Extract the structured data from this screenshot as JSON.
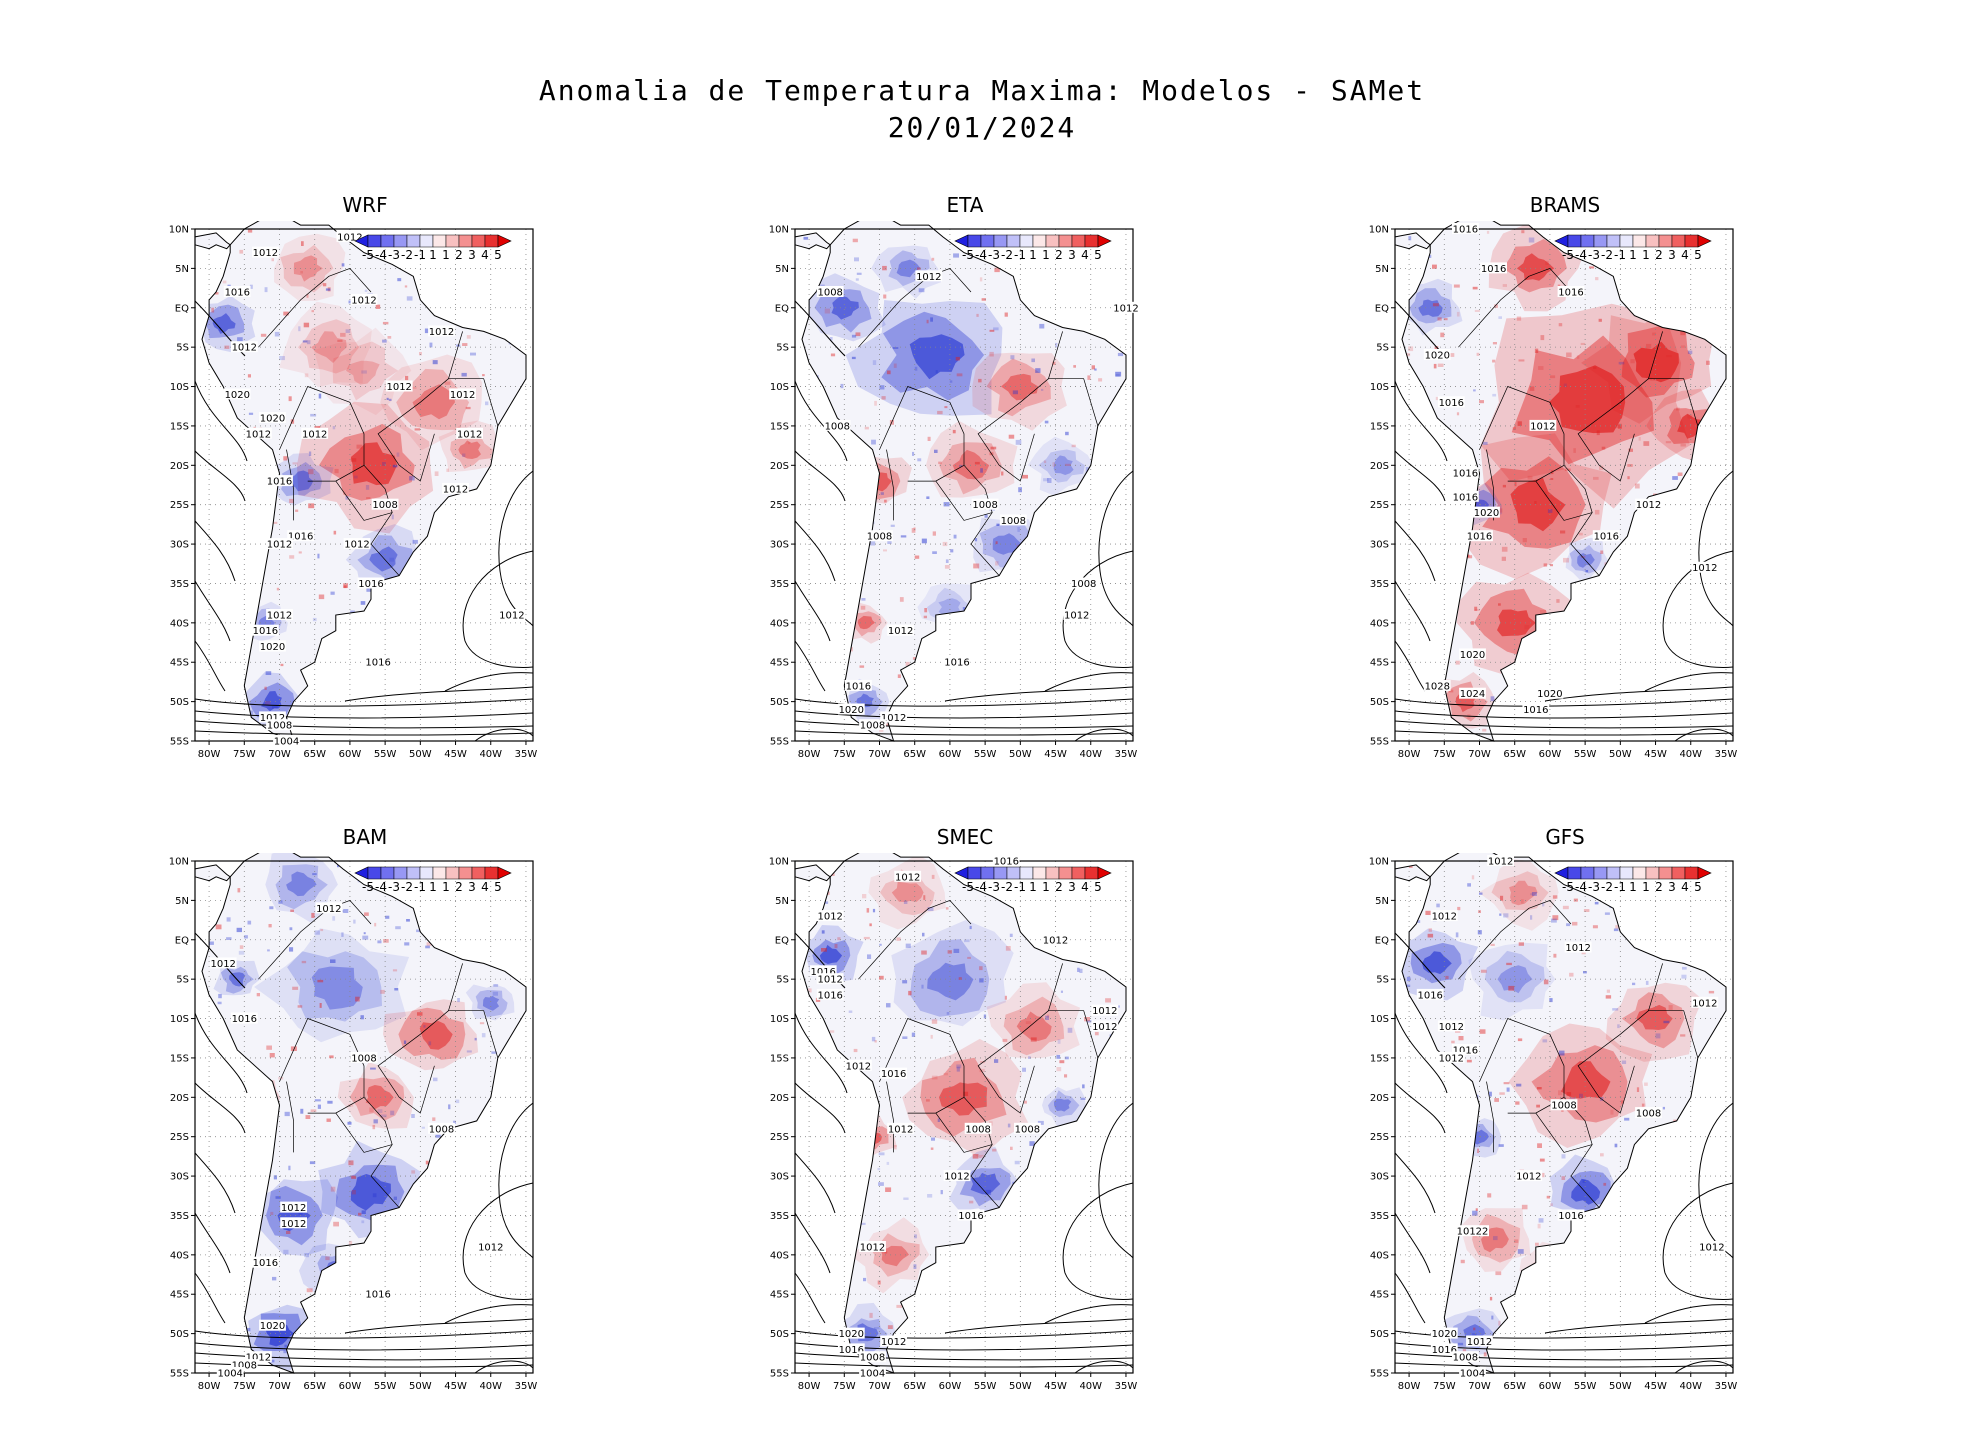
{
  "title": {
    "line1": "Anomalia de Temperatura Maxima: Modelos - SAMet",
    "line2": "20/01/2024"
  },
  "colorbar": {
    "labels": [
      "-5",
      "-4",
      "-3",
      "-2",
      "-1",
      "1",
      "1",
      "2",
      "3",
      "4",
      "5"
    ],
    "colors": [
      "#2020e0",
      "#4848e8",
      "#7070f0",
      "#9898f4",
      "#c0c0f8",
      "#e8e8fc",
      "#fce8e8",
      "#f8c0c0",
      "#f49090",
      "#f06060",
      "#e83030",
      "#e00000"
    ]
  },
  "axes": {
    "lat_labels": [
      "10N",
      "5N",
      "EQ",
      "5S",
      "10S",
      "15S",
      "20S",
      "25S",
      "30S",
      "35S",
      "40S",
      "45S",
      "50S",
      "55S"
    ],
    "lon_labels": [
      "80W",
      "75W",
      "70W",
      "65W",
      "60W",
      "55W",
      "50W",
      "45W",
      "40W",
      "35W"
    ],
    "lat_range": [
      10,
      -55
    ],
    "lon_range": [
      -82,
      -34
    ]
  },
  "colors": {
    "warm": "#e02020",
    "cold": "#2030d0",
    "land": "#f4f4fa"
  },
  "panels": [
    {
      "name": "WRF",
      "warm": 0.55,
      "cold": 0.4,
      "labels": [
        {
          "text": "1012",
          "lon": -72,
          "lat": 7
        },
        {
          "text": "1012",
          "lon": -60,
          "lat": 9
        },
        {
          "text": "1016",
          "lon": -76,
          "lat": 2
        },
        {
          "text": "1012",
          "lon": -58,
          "lat": 1
        },
        {
          "text": "1012",
          "lon": -47,
          "lat": -3
        },
        {
          "text": "1012",
          "lon": -75,
          "lat": -5
        },
        {
          "text": "1020",
          "lon": -76,
          "lat": -11
        },
        {
          "text": "1012",
          "lon": -53,
          "lat": -10
        },
        {
          "text": "1012",
          "lon": -44,
          "lat": -11
        },
        {
          "text": "1012",
          "lon": -43,
          "lat": -16
        },
        {
          "text": "1020",
          "lon": -71,
          "lat": -14
        },
        {
          "text": "1012",
          "lon": -73,
          "lat": -16
        },
        {
          "text": "1012",
          "lon": -65,
          "lat": -16
        },
        {
          "text": "1016",
          "lon": -70,
          "lat": -22
        },
        {
          "text": "1008",
          "lon": -55,
          "lat": -25
        },
        {
          "text": "1012",
          "lon": -45,
          "lat": -23
        },
        {
          "text": "1016",
          "lon": -67,
          "lat": -29
        },
        {
          "text": "1012",
          "lon": -70,
          "lat": -30
        },
        {
          "text": "1012",
          "lon": -59,
          "lat": -30
        },
        {
          "text": "1016",
          "lon": -57,
          "lat": -35
        },
        {
          "text": "1012",
          "lon": -70,
          "lat": -39
        },
        {
          "text": "1016",
          "lon": -72,
          "lat": -41
        },
        {
          "text": "1020",
          "lon": -71,
          "lat": -43
        },
        {
          "text": "1016",
          "lon": -56,
          "lat": -45
        },
        {
          "text": "1012",
          "lon": -37,
          "lat": -39
        },
        {
          "text": "1012",
          "lon": -71,
          "lat": -52
        },
        {
          "text": "1008",
          "lon": -70,
          "lat": -53
        },
        {
          "text": "1004",
          "lon": -69,
          "lat": -55
        }
      ]
    },
    {
      "name": "ETA",
      "warm": 0.48,
      "cold": 0.42,
      "labels": [
        {
          "text": "1012",
          "lon": -63,
          "lat": 4
        },
        {
          "text": "1008",
          "lon": -77,
          "lat": 2
        },
        {
          "text": "1012",
          "lon": -35,
          "lat": 0
        },
        {
          "text": "1008",
          "lon": -76,
          "lat": -15
        },
        {
          "text": "1008",
          "lon": -55,
          "lat": -25
        },
        {
          "text": "1008",
          "lon": -51,
          "lat": -27
        },
        {
          "text": "1008",
          "lon": -70,
          "lat": -29
        },
        {
          "text": "1008",
          "lon": -41,
          "lat": -35
        },
        {
          "text": "1012",
          "lon": -42,
          "lat": -39
        },
        {
          "text": "1012",
          "lon": -67,
          "lat": -41
        },
        {
          "text": "1016",
          "lon": -59,
          "lat": -45
        },
        {
          "text": "1016",
          "lon": -73,
          "lat": -48
        },
        {
          "text": "1020",
          "lon": -74,
          "lat": -51
        },
        {
          "text": "1012",
          "lon": -68,
          "lat": -52
        },
        {
          "text": "1008",
          "lon": -71,
          "lat": -53
        }
      ]
    },
    {
      "name": "BRAMS",
      "warm": 0.85,
      "cold": 0.3,
      "labels": [
        {
          "text": "1016",
          "lon": -72,
          "lat": 10
        },
        {
          "text": "1016",
          "lon": -68,
          "lat": 5
        },
        {
          "text": "1016",
          "lon": -57,
          "lat": 2
        },
        {
          "text": "1020",
          "lon": -76,
          "lat": -6
        },
        {
          "text": "1016",
          "lon": -74,
          "lat": -12
        },
        {
          "text": "1012",
          "lon": -61,
          "lat": -15
        },
        {
          "text": "1016",
          "lon": -72,
          "lat": -21
        },
        {
          "text": "1016",
          "lon": -72,
          "lat": -24
        },
        {
          "text": "1020",
          "lon": -69,
          "lat": -26
        },
        {
          "text": "1016",
          "lon": -70,
          "lat": -29
        },
        {
          "text": "1012",
          "lon": -46,
          "lat": -25
        },
        {
          "text": "1016",
          "lon": -52,
          "lat": -29
        },
        {
          "text": "1012",
          "lon": -38,
          "lat": -33
        },
        {
          "text": "1020",
          "lon": -71,
          "lat": -44
        },
        {
          "text": "1028",
          "lon": -76,
          "lat": -48
        },
        {
          "text": "1024",
          "lon": -71,
          "lat": -49
        },
        {
          "text": "1020",
          "lon": -60,
          "lat": -49
        },
        {
          "text": "1016",
          "lon": -62,
          "lat": -51
        }
      ]
    },
    {
      "name": "BAM",
      "warm": 0.42,
      "cold": 0.55,
      "labels": [
        {
          "text": "1012",
          "lon": -63,
          "lat": 4
        },
        {
          "text": "1012",
          "lon": -78,
          "lat": -3
        },
        {
          "text": "1016",
          "lon": -75,
          "lat": -10
        },
        {
          "text": "1008",
          "lon": -58,
          "lat": -15
        },
        {
          "text": "1008",
          "lon": -47,
          "lat": -24
        },
        {
          "text": "1012",
          "lon": -68,
          "lat": -34
        },
        {
          "text": "1012",
          "lon": -68,
          "lat": -36
        },
        {
          "text": "1012",
          "lon": -40,
          "lat": -39
        },
        {
          "text": "1016",
          "lon": -72,
          "lat": -41
        },
        {
          "text": "1016",
          "lon": -56,
          "lat": -45
        },
        {
          "text": "1020",
          "lon": -71,
          "lat": -49
        },
        {
          "text": "1012",
          "lon": -73,
          "lat": -53
        },
        {
          "text": "1008",
          "lon": -75,
          "lat": -54
        },
        {
          "text": "1004",
          "lon": -77,
          "lat": -55
        }
      ]
    },
    {
      "name": "SMEC",
      "warm": 0.5,
      "cold": 0.45,
      "labels": [
        {
          "text": "1016",
          "lon": -52,
          "lat": 10
        },
        {
          "text": "1012",
          "lon": -66,
          "lat": 8
        },
        {
          "text": "1012",
          "lon": -77,
          "lat": 3
        },
        {
          "text": "1012",
          "lon": -45,
          "lat": 0
        },
        {
          "text": "1016",
          "lon": -78,
          "lat": -4
        },
        {
          "text": "1012",
          "lon": -77,
          "lat": -5
        },
        {
          "text": "1016",
          "lon": -77,
          "lat": -7
        },
        {
          "text": "1012",
          "lon": -38,
          "lat": -9
        },
        {
          "text": "1012",
          "lon": -38,
          "lat": -11
        },
        {
          "text": "1012",
          "lon": -73,
          "lat": -16
        },
        {
          "text": "1016",
          "lon": -68,
          "lat": -17
        },
        {
          "text": "1012",
          "lon": -67,
          "lat": -24
        },
        {
          "text": "1008",
          "lon": -56,
          "lat": -24
        },
        {
          "text": "1008",
          "lon": -49,
          "lat": -24
        },
        {
          "text": "1012",
          "lon": -59,
          "lat": -30
        },
        {
          "text": "1016",
          "lon": -57,
          "lat": -35
        },
        {
          "text": "1012",
          "lon": -71,
          "lat": -39
        },
        {
          "text": "1020",
          "lon": -74,
          "lat": -50
        },
        {
          "text": "1012",
          "lon": -68,
          "lat": -51
        },
        {
          "text": "1016",
          "lon": -74,
          "lat": -52
        },
        {
          "text": "1008",
          "lon": -71,
          "lat": -53
        },
        {
          "text": "1004",
          "lon": -71,
          "lat": -55
        }
      ]
    },
    {
      "name": "GFS",
      "warm": 0.6,
      "cold": 0.42,
      "labels": [
        {
          "text": "1012",
          "lon": -67,
          "lat": 10
        },
        {
          "text": "1012",
          "lon": -75,
          "lat": 3
        },
        {
          "text": "1012",
          "lon": -56,
          "lat": -1
        },
        {
          "text": "1016",
          "lon": -77,
          "lat": -7
        },
        {
          "text": "1012",
          "lon": -38,
          "lat": -8
        },
        {
          "text": "1012",
          "lon": -74,
          "lat": -11
        },
        {
          "text": "1016",
          "lon": -72,
          "lat": -14
        },
        {
          "text": "1012",
          "lon": -74,
          "lat": -15
        },
        {
          "text": "1008",
          "lon": -58,
          "lat": -21
        },
        {
          "text": "1008",
          "lon": -46,
          "lat": -22
        },
        {
          "text": "1012",
          "lon": -63,
          "lat": -30
        },
        {
          "text": "1016",
          "lon": -57,
          "lat": -35
        },
        {
          "text": "10122",
          "lon": -71,
          "lat": -37
        },
        {
          "text": "1012",
          "lon": -37,
          "lat": -39
        },
        {
          "text": "1020",
          "lon": -75,
          "lat": -50
        },
        {
          "text": "1012",
          "lon": -70,
          "lat": -51
        },
        {
          "text": "1016",
          "lon": -75,
          "lat": -52
        },
        {
          "text": "1008",
          "lon": -72,
          "lat": -53
        },
        {
          "text": "1004",
          "lon": -71,
          "lat": -55
        }
      ]
    }
  ]
}
